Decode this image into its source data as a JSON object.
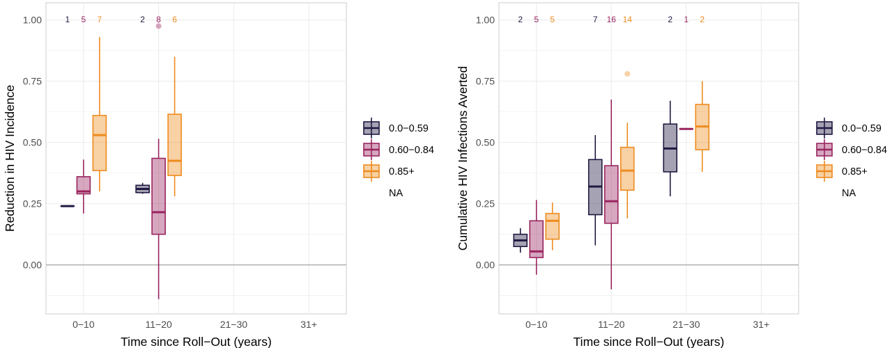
{
  "colors": {
    "low": "#1f1942",
    "mid": "#99245f",
    "high": "#ee8b1e",
    "grid": "#ebebeb",
    "zero": "#b3b3b3",
    "axis_text": "#4d4d4d"
  },
  "legend": {
    "items": [
      {
        "label": "0.0−0.59",
        "color_key": "low"
      },
      {
        "label": "0.60−0.84",
        "color_key": "mid"
      },
      {
        "label": "0.85+",
        "color_key": "high"
      },
      {
        "label": "NA",
        "color_key": null
      }
    ]
  },
  "chart_data": [
    {
      "type": "boxplot",
      "xlabel": "Time since Roll−Out (years)",
      "ylabel": "Reduction in HIV Incidence",
      "categories": [
        "0−10",
        "11−20",
        "21−30",
        "31+"
      ],
      "ylim": [
        -0.2,
        1.07
      ],
      "yticks": [
        0.0,
        0.25,
        0.5,
        0.75,
        1.0
      ],
      "ytick_labels": [
        "0.00",
        "0.25",
        "0.50",
        "0.75",
        "1.00"
      ],
      "grid": true,
      "legend_position": "right",
      "series": [
        {
          "name": "0.0−0.59",
          "color_key": "low",
          "boxes": [
            {
              "category": "0−10",
              "n": "1",
              "min": 0.24,
              "q1": 0.24,
              "median": 0.24,
              "q3": 0.24,
              "max": 0.24,
              "outliers": []
            },
            {
              "category": "11−20",
              "n": "2",
              "min": 0.29,
              "q1": 0.295,
              "median": 0.31,
              "q3": 0.325,
              "max": 0.335,
              "outliers": []
            }
          ]
        },
        {
          "name": "0.60−0.84",
          "color_key": "mid",
          "boxes": [
            {
              "category": "0−10",
              "n": "5",
              "min": 0.21,
              "q1": 0.29,
              "median": 0.3,
              "q3": 0.36,
              "max": 0.43,
              "outliers": []
            },
            {
              "category": "11−20",
              "n": "8",
              "min": -0.14,
              "q1": 0.125,
              "median": 0.215,
              "q3": 0.435,
              "max": 0.515,
              "outliers": [
                0.975
              ]
            }
          ]
        },
        {
          "name": "0.85+",
          "color_key": "high",
          "boxes": [
            {
              "category": "0−10",
              "n": "7",
              "min": 0.3,
              "q1": 0.385,
              "median": 0.53,
              "q3": 0.61,
              "max": 0.93,
              "outliers": []
            },
            {
              "category": "11−20",
              "n": "6",
              "min": 0.28,
              "q1": 0.365,
              "median": 0.425,
              "q3": 0.615,
              "max": 0.85,
              "outliers": []
            }
          ]
        }
      ]
    },
    {
      "type": "boxplot",
      "xlabel": "Time since Roll−Out (years)",
      "ylabel": "Cumulative HIV Infections Averted",
      "categories": [
        "0−10",
        "11−20",
        "21−30",
        "31+"
      ],
      "ylim": [
        -0.2,
        1.07
      ],
      "yticks": [
        0.0,
        0.25,
        0.5,
        0.75,
        1.0
      ],
      "ytick_labels": [
        "0.00",
        "0.25",
        "0.50",
        "0.75",
        "1.00"
      ],
      "grid": true,
      "legend_position": "right",
      "series": [
        {
          "name": "0.0−0.59",
          "color_key": "low",
          "boxes": [
            {
              "category": "0−10",
              "n": "2",
              "min": 0.05,
              "q1": 0.075,
              "median": 0.1,
              "q3": 0.125,
              "max": 0.15,
              "outliers": []
            },
            {
              "category": "11−20",
              "n": "7",
              "min": 0.08,
              "q1": 0.205,
              "median": 0.32,
              "q3": 0.43,
              "max": 0.53,
              "outliers": []
            },
            {
              "category": "21−30",
              "n": "2",
              "min": 0.28,
              "q1": 0.38,
              "median": 0.475,
              "q3": 0.575,
              "max": 0.67,
              "outliers": []
            }
          ]
        },
        {
          "name": "0.60−0.84",
          "color_key": "mid",
          "boxes": [
            {
              "category": "0−10",
              "n": "5",
              "min": -0.04,
              "q1": 0.03,
              "median": 0.055,
              "q3": 0.18,
              "max": 0.265,
              "outliers": []
            },
            {
              "category": "11−20",
              "n": "16",
              "min": -0.1,
              "q1": 0.17,
              "median": 0.26,
              "q3": 0.405,
              "max": 0.675,
              "outliers": []
            },
            {
              "category": "21−30",
              "n": "1",
              "min": 0.555,
              "q1": 0.555,
              "median": 0.555,
              "q3": 0.555,
              "max": 0.555,
              "outliers": []
            }
          ]
        },
        {
          "name": "0.85+",
          "color_key": "high",
          "boxes": [
            {
              "category": "0−10",
              "n": "5",
              "min": 0.06,
              "q1": 0.105,
              "median": 0.18,
              "q3": 0.21,
              "max": 0.255,
              "outliers": []
            },
            {
              "category": "11−20",
              "n": "14",
              "min": 0.19,
              "q1": 0.305,
              "median": 0.385,
              "q3": 0.48,
              "max": 0.58,
              "outliers": [
                0.78
              ]
            },
            {
              "category": "21−30",
              "n": "2",
              "min": 0.38,
              "q1": 0.47,
              "median": 0.565,
              "q3": 0.655,
              "max": 0.75,
              "outliers": []
            }
          ]
        }
      ]
    }
  ]
}
